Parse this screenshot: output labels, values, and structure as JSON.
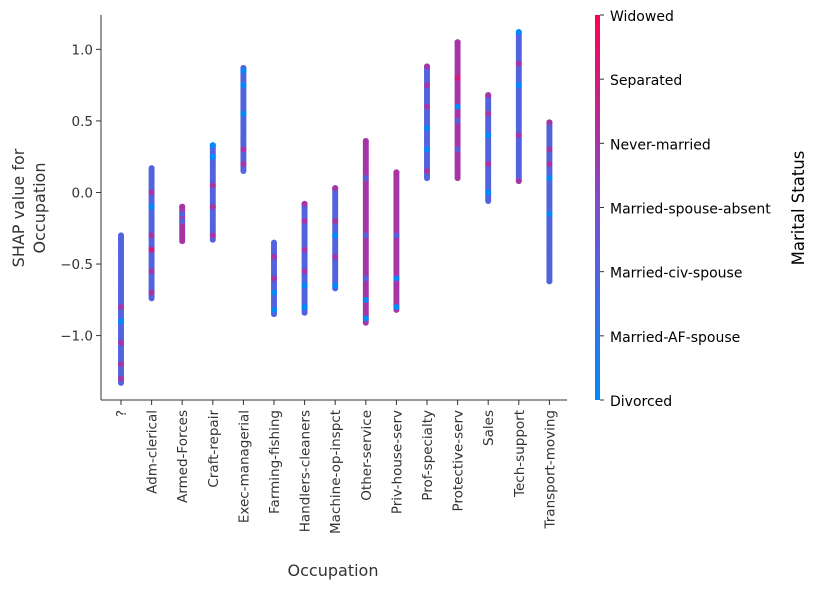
{
  "chart_data": {
    "type": "scatter",
    "title": "",
    "xlabel": "Occupation",
    "ylabel_lines": [
      "SHAP value for",
      "Occupation"
    ],
    "ylim": [
      -1.45,
      1.24
    ],
    "yticks": [
      1.0,
      0.5,
      0.0,
      -0.5,
      -1.0
    ],
    "ytick_labels": [
      "1.0",
      "0.5",
      "0.0",
      "−0.5",
      "−1.0"
    ],
    "categories": [
      "?",
      "Adm-clerical",
      "Armed-Forces",
      "Craft-repair",
      "Exec-managerial",
      "Farming-fishing",
      "Handlers-cleaners",
      "Machine-op-inspct",
      "Other-service",
      "Priv-house-serv",
      "Prof-specialty",
      "Protective-serv",
      "Sales",
      "Tech-support",
      "Transport-moving"
    ],
    "colorbar": {
      "title": "Marital Status",
      "labels": [
        "Widowed",
        "Separated",
        "Never-married",
        "Married-spouse-absent",
        "Married-civ-spouse",
        "Married-AF-spouse",
        "Divorced"
      ],
      "color_top": "#ff0052",
      "color_mid": "#7b4fd0",
      "color_bottom": "#008bfb"
    },
    "series": [
      {
        "category": "?",
        "range": [
          -1.33,
          -0.3
        ],
        "dominant": "Married-civ-spouse",
        "accents": [
          {
            "y": -1.05,
            "status": "Never-married"
          },
          {
            "y": -1.2,
            "status": "Never-married"
          },
          {
            "y": -0.8,
            "status": "Never-married"
          },
          {
            "y": -0.9,
            "status": "Divorced"
          },
          {
            "y": -1.3,
            "status": "Never-married"
          }
        ]
      },
      {
        "category": "Adm-clerical",
        "range": [
          -0.74,
          0.17
        ],
        "dominant": "Married-civ-spouse",
        "accents": [
          {
            "y": -0.3,
            "status": "Never-married"
          },
          {
            "y": -0.55,
            "status": "Never-married"
          },
          {
            "y": -0.7,
            "status": "Never-married"
          },
          {
            "y": -0.1,
            "status": "Divorced"
          },
          {
            "y": 0.0,
            "status": "Never-married"
          },
          {
            "y": -0.4,
            "status": "Separated"
          }
        ]
      },
      {
        "category": "Armed-Forces",
        "range": [
          -0.34,
          -0.1
        ],
        "dominant": "Never-married",
        "accents": [
          {
            "y": -0.15,
            "status": "Married-civ-spouse"
          },
          {
            "y": -0.2,
            "status": "Married-civ-spouse"
          }
        ]
      },
      {
        "category": "Craft-repair",
        "range": [
          -0.33,
          0.33
        ],
        "dominant": "Married-civ-spouse",
        "accents": [
          {
            "y": 0.25,
            "status": "Divorced"
          },
          {
            "y": 0.33,
            "status": "Divorced"
          },
          {
            "y": -0.3,
            "status": "Never-married"
          },
          {
            "y": -0.1,
            "status": "Never-married"
          },
          {
            "y": 0.05,
            "status": "Never-married"
          }
        ]
      },
      {
        "category": "Exec-managerial",
        "range": [
          0.15,
          0.87
        ],
        "dominant": "Married-civ-spouse",
        "accents": [
          {
            "y": 0.85,
            "status": "Divorced"
          },
          {
            "y": 0.75,
            "status": "Divorced"
          },
          {
            "y": 0.2,
            "status": "Never-married"
          },
          {
            "y": 0.3,
            "status": "Never-married"
          },
          {
            "y": 0.55,
            "status": "Divorced"
          }
        ]
      },
      {
        "category": "Farming-fishing",
        "range": [
          -0.85,
          -0.35
        ],
        "dominant": "Married-civ-spouse",
        "accents": [
          {
            "y": -0.82,
            "status": "Divorced"
          },
          {
            "y": -0.6,
            "status": "Never-married"
          },
          {
            "y": -0.45,
            "status": "Never-married"
          },
          {
            "y": -0.7,
            "status": "Divorced"
          }
        ]
      },
      {
        "category": "Handlers-cleaners",
        "range": [
          -0.84,
          -0.08
        ],
        "dominant": "Married-civ-spouse",
        "accents": [
          {
            "y": -0.08,
            "status": "Never-married"
          },
          {
            "y": -0.2,
            "status": "Never-married"
          },
          {
            "y": -0.4,
            "status": "Never-married"
          },
          {
            "y": -0.55,
            "status": "Never-married"
          },
          {
            "y": -0.8,
            "status": "Divorced"
          },
          {
            "y": -0.65,
            "status": "Divorced"
          }
        ]
      },
      {
        "category": "Machine-op-inspct",
        "range": [
          -0.67,
          0.03
        ],
        "dominant": "Married-civ-spouse",
        "accents": [
          {
            "y": 0.03,
            "status": "Never-married"
          },
          {
            "y": -0.2,
            "status": "Never-married"
          },
          {
            "y": -0.45,
            "status": "Never-married"
          },
          {
            "y": -0.65,
            "status": "Divorced"
          },
          {
            "y": -0.3,
            "status": "Divorced"
          }
        ]
      },
      {
        "category": "Other-service",
        "range": [
          -0.91,
          0.36
        ],
        "dominant": "Never-married",
        "accents": [
          {
            "y": 0.36,
            "status": "Never-married"
          },
          {
            "y": -0.88,
            "status": "Divorced"
          },
          {
            "y": -0.6,
            "status": "Married-civ-spouse"
          },
          {
            "y": -0.3,
            "status": "Married-civ-spouse"
          },
          {
            "y": 0.1,
            "status": "Married-civ-spouse"
          },
          {
            "y": -0.75,
            "status": "Divorced"
          }
        ]
      },
      {
        "category": "Priv-house-serv",
        "range": [
          -0.82,
          0.14
        ],
        "dominant": "Never-married",
        "accents": [
          {
            "y": 0.14,
            "status": "Never-married"
          },
          {
            "y": -0.8,
            "status": "Divorced"
          },
          {
            "y": -0.6,
            "status": "Divorced"
          },
          {
            "y": -0.3,
            "status": "Married-civ-spouse"
          }
        ]
      },
      {
        "category": "Prof-specialty",
        "range": [
          0.1,
          0.88
        ],
        "dominant": "Married-civ-spouse",
        "accents": [
          {
            "y": 0.88,
            "status": "Never-married"
          },
          {
            "y": 0.75,
            "status": "Never-married"
          },
          {
            "y": 0.6,
            "status": "Never-married"
          },
          {
            "y": 0.3,
            "status": "Divorced"
          },
          {
            "y": 0.15,
            "status": "Never-married"
          },
          {
            "y": 0.45,
            "status": "Divorced"
          }
        ]
      },
      {
        "category": "Protective-serv",
        "range": [
          0.1,
          1.05
        ],
        "dominant": "Never-married",
        "accents": [
          {
            "y": 1.05,
            "status": "Never-married"
          },
          {
            "y": 0.8,
            "status": "Separated"
          },
          {
            "y": 0.5,
            "status": "Married-civ-spouse"
          },
          {
            "y": 0.3,
            "status": "Married-civ-spouse"
          },
          {
            "y": 0.6,
            "status": "Divorced"
          }
        ]
      },
      {
        "category": "Sales",
        "range": [
          -0.06,
          0.68
        ],
        "dominant": "Married-civ-spouse",
        "accents": [
          {
            "y": 0.68,
            "status": "Never-married"
          },
          {
            "y": 0.55,
            "status": "Never-married"
          },
          {
            "y": 0.2,
            "status": "Never-married"
          },
          {
            "y": 0.0,
            "status": "Divorced"
          },
          {
            "y": 0.4,
            "status": "Divorced"
          }
        ]
      },
      {
        "category": "Tech-support",
        "range": [
          0.08,
          1.12
        ],
        "dominant": "Married-civ-spouse",
        "accents": [
          {
            "y": 1.12,
            "status": "Divorced"
          },
          {
            "y": 0.9,
            "status": "Never-married"
          },
          {
            "y": 0.75,
            "status": "Divorced"
          },
          {
            "y": 0.4,
            "status": "Never-married"
          },
          {
            "y": 0.08,
            "status": "Never-married"
          }
        ]
      },
      {
        "category": "Transport-moving",
        "range": [
          -0.62,
          0.49
        ],
        "dominant": "Married-civ-spouse",
        "accents": [
          {
            "y": 0.49,
            "status": "Never-married"
          },
          {
            "y": 0.3,
            "status": "Never-married"
          },
          {
            "y": 0.1,
            "status": "Divorced"
          },
          {
            "y": -0.15,
            "status": "Divorced"
          },
          {
            "y": -0.62,
            "status": "Married-civ-spouse"
          },
          {
            "y": 0.2,
            "status": "Never-married"
          }
        ]
      }
    ]
  }
}
